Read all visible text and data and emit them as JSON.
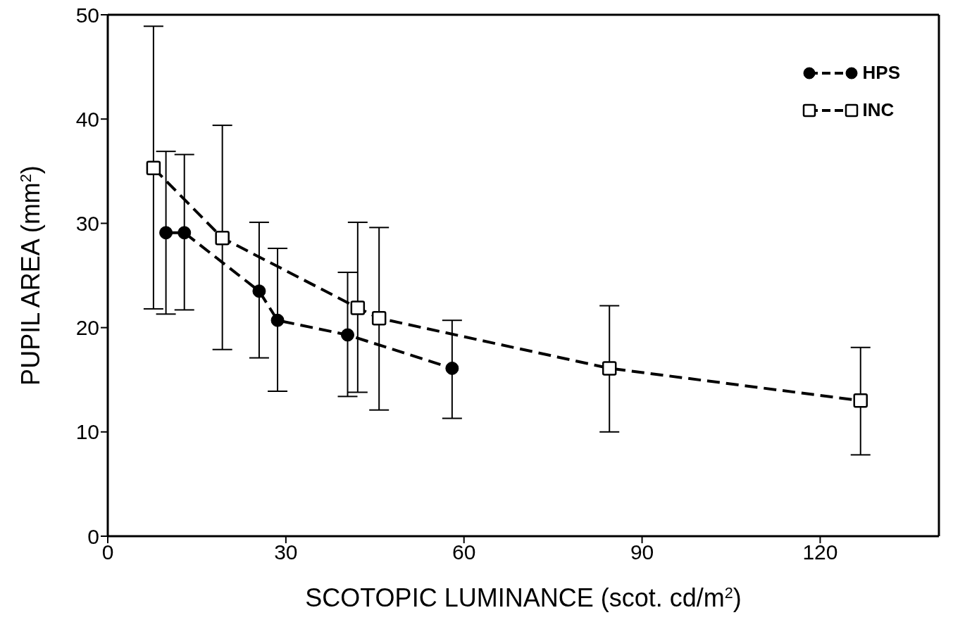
{
  "chart_data": {
    "type": "line",
    "xlabel": "SCOTOPIC LUMINANCE (scot. cd/m$^{2}$)",
    "ylabel": "PUPIL AREA (mm$^{2}$)",
    "xlim": [
      0,
      140
    ],
    "xticks": [
      0,
      30,
      60,
      90,
      120
    ],
    "ylim": [
      0,
      50
    ],
    "yticks": [
      0,
      10,
      20,
      30,
      40,
      50
    ],
    "legend": "top right",
    "series": [
      {
        "name": "HPS",
        "color": "#000000",
        "marker": "circle",
        "line_style": "dashed",
        "x": [
          9.8,
          12.9,
          25.5,
          28.6,
          40.4,
          58.0
        ],
        "values": [
          29.1,
          29.1,
          23.5,
          20.7,
          19.3,
          16.1
        ],
        "errors": [
          [
            21.3,
            36.9
          ],
          [
            21.7,
            36.6
          ],
          [
            17.1,
            30.1
          ],
          [
            13.9,
            27.6
          ],
          [
            13.4,
            25.3
          ],
          [
            11.3,
            20.7
          ]
        ]
      },
      {
        "name": "INC",
        "color": "#000000",
        "marker": "square",
        "line_style": "dashed",
        "x": [
          7.7,
          19.3,
          42.1,
          45.7,
          84.5,
          126.8
        ],
        "values": [
          35.3,
          28.6,
          21.9,
          20.9,
          16.1,
          13.0
        ],
        "errors": [
          [
            21.8,
            48.9
          ],
          [
            17.9,
            39.4
          ],
          [
            13.8,
            30.1
          ],
          [
            12.1,
            29.6
          ],
          [
            10.0,
            22.1
          ],
          [
            7.8,
            18.1
          ]
        ]
      }
    ]
  }
}
